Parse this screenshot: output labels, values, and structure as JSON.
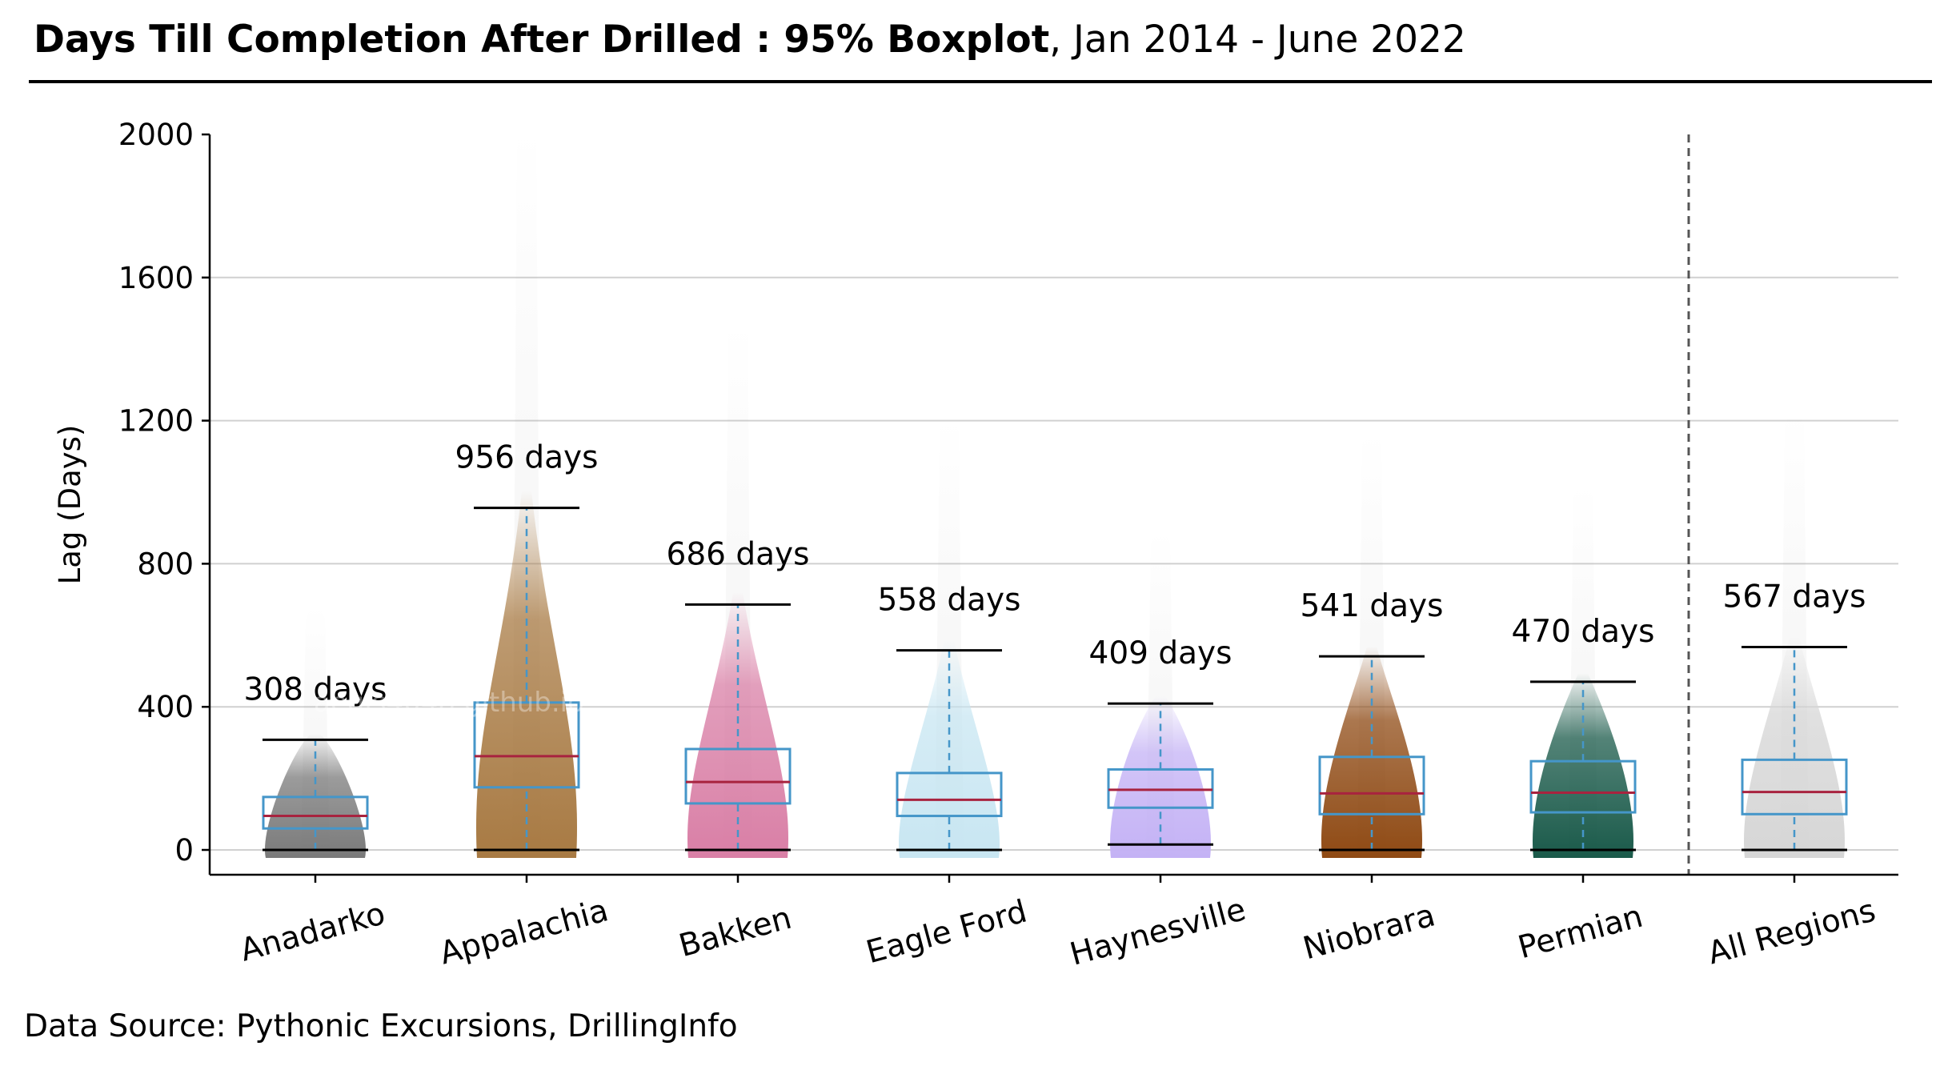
{
  "title": {
    "bold": "Days Till Completion After Drilled : 95% Boxplot",
    "rest": ",  Jan 2014 - June 2022"
  },
  "source": "Data Source: Pythonic Excursions, DrillingInfo",
  "watermark": "aegis4048.github.io",
  "chart_data": {
    "type": "box",
    "ylabel": "Lag (Days)",
    "xlabel": "",
    "ylim": [
      -70,
      2000
    ],
    "yticks": [
      0,
      400,
      800,
      1200,
      1600,
      2000
    ],
    "grid": "horizontal",
    "categories": [
      "Anadarko",
      "Appalachia",
      "Bakken",
      "Eagle Ford",
      "Haynesville",
      "Niobrara",
      "Permian",
      "All Regions"
    ],
    "series": [
      {
        "category": "Anadarko",
        "color": "#7a7a7a",
        "whisker_low": 0,
        "q1": 60,
        "median": 95,
        "q3": 148,
        "whisker_high": 308,
        "label": "308 days"
      },
      {
        "category": "Appalachia",
        "color": "#a87a43",
        "whisker_low": 0,
        "q1": 175,
        "median": 262,
        "q3": 412,
        "whisker_high": 956,
        "label": "956 days"
      },
      {
        "category": "Bakken",
        "color": "#d97fa6",
        "whisker_low": 0,
        "q1": 130,
        "median": 190,
        "q3": 282,
        "whisker_high": 686,
        "label": "686 days"
      },
      {
        "category": "Eagle Ford",
        "color": "#c8e6f2",
        "whisker_low": 0,
        "q1": 95,
        "median": 140,
        "q3": 215,
        "whisker_high": 558,
        "label": "558 days"
      },
      {
        "category": "Haynesville",
        "color": "#c4b2f5",
        "whisker_low": 15,
        "q1": 118,
        "median": 168,
        "q3": 225,
        "whisker_high": 409,
        "label": "409 days"
      },
      {
        "category": "Niobrara",
        "color": "#8f4a14",
        "whisker_low": 0,
        "q1": 100,
        "median": 158,
        "q3": 260,
        "whisker_high": 541,
        "label": "541 days"
      },
      {
        "category": "Permian",
        "color": "#1a5a4a",
        "whisker_low": 0,
        "q1": 105,
        "median": 160,
        "q3": 248,
        "whisker_high": 470,
        "label": "470 days"
      },
      {
        "category": "All Regions",
        "color": "#d6d6d6",
        "whisker_low": 0,
        "q1": 100,
        "median": 162,
        "q3": 252,
        "whisker_high": 567,
        "label": "567 days"
      }
    ],
    "box_edge_color": "#4596c9",
    "median_color": "#a8233f",
    "divider": "dashed line between Permian and All Regions"
  }
}
